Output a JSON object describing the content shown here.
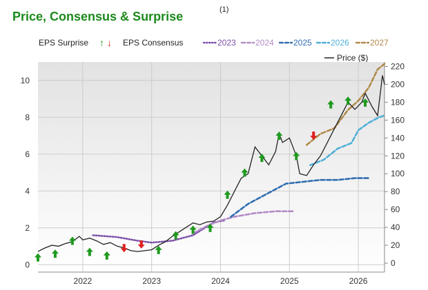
{
  "title": "Price, Consensus & Surprise",
  "title_superscript": "(1)",
  "legend": {
    "eps_surprise": "EPS Surprise",
    "eps_consensus": "EPS Consensus",
    "up_arrow": "↑",
    "down_arrow": "↓",
    "price": "Price ($)",
    "years": [
      "2023",
      "2024",
      "2025",
      "2026",
      "2027"
    ]
  },
  "colors": {
    "title": "#1d8a1d",
    "price": "#222222",
    "up": "#1f9a1f",
    "down": "#e02020",
    "plot_bg_top": "#e2e2e2",
    "plot_bg_bottom": "#ffffff",
    "grid": "#cccccc",
    "c2023": "#7b4fa8",
    "c2024": "#b38cc7",
    "c2025": "#2f6db0",
    "c2026": "#4fb0d8",
    "c2027": "#b08a4a"
  },
  "chart_data": {
    "type": "line",
    "x_axis": {
      "ticks": [
        "2022",
        "2023",
        "2024",
        "2025",
        "2026"
      ],
      "range": [
        2021.35,
        2026.38
      ]
    },
    "y_left": {
      "label": "",
      "ticks": [
        0,
        2,
        4,
        6,
        8,
        10
      ],
      "range": [
        -0.4,
        11
      ]
    },
    "y_right": {
      "label": "Price ($)",
      "ticks": [
        0,
        20,
        40,
        60,
        80,
        100,
        120,
        140,
        160,
        180,
        200,
        220
      ],
      "range": [
        -10,
        225
      ]
    },
    "price_series": {
      "name": "Price ($)",
      "points": [
        [
          2021.35,
          13
        ],
        [
          2021.45,
          17
        ],
        [
          2021.55,
          20
        ],
        [
          2021.65,
          19
        ],
        [
          2021.75,
          22
        ],
        [
          2021.85,
          24
        ],
        [
          2021.95,
          30
        ],
        [
          2022.0,
          26
        ],
        [
          2022.1,
          28
        ],
        [
          2022.2,
          25
        ],
        [
          2022.3,
          21
        ],
        [
          2022.4,
          23
        ],
        [
          2022.5,
          19
        ],
        [
          2022.6,
          17
        ],
        [
          2022.7,
          14
        ],
        [
          2022.8,
          13
        ],
        [
          2022.9,
          14
        ],
        [
          2023.0,
          15
        ],
        [
          2023.1,
          20
        ],
        [
          2023.2,
          24
        ],
        [
          2023.3,
          30
        ],
        [
          2023.4,
          35
        ],
        [
          2023.5,
          40
        ],
        [
          2023.6,
          45
        ],
        [
          2023.7,
          43
        ],
        [
          2023.8,
          46
        ],
        [
          2023.9,
          47
        ],
        [
          2024.0,
          52
        ],
        [
          2024.1,
          65
        ],
        [
          2024.2,
          80
        ],
        [
          2024.3,
          95
        ],
        [
          2024.4,
          100
        ],
        [
          2024.5,
          130
        ],
        [
          2024.6,
          120
        ],
        [
          2024.7,
          110
        ],
        [
          2024.8,
          125
        ],
        [
          2024.85,
          145
        ],
        [
          2024.9,
          135
        ],
        [
          2025.0,
          140
        ],
        [
          2025.1,
          120
        ],
        [
          2025.15,
          100
        ],
        [
          2025.25,
          98
        ],
        [
          2025.35,
          110
        ],
        [
          2025.45,
          120
        ],
        [
          2025.55,
          135
        ],
        [
          2025.65,
          150
        ],
        [
          2025.75,
          165
        ],
        [
          2025.85,
          180
        ],
        [
          2025.95,
          172
        ],
        [
          2026.05,
          180
        ],
        [
          2026.1,
          190
        ],
        [
          2026.2,
          175
        ],
        [
          2026.28,
          165
        ],
        [
          2026.35,
          210
        ],
        [
          2026.38,
          200
        ]
      ]
    },
    "consensus_series": [
      {
        "name": "2023",
        "style": "dotted",
        "points": [
          [
            2022.15,
            1.6
          ],
          [
            2022.5,
            1.5
          ],
          [
            2022.8,
            1.3
          ],
          [
            2023.0,
            1.2
          ],
          [
            2023.3,
            1.3
          ],
          [
            2023.6,
            1.6
          ],
          [
            2023.9,
            2.3
          ],
          [
            2024.05,
            2.4
          ]
        ]
      },
      {
        "name": "2024",
        "style": "dashed",
        "points": [
          [
            2023.6,
            1.7
          ],
          [
            2023.8,
            2.1
          ],
          [
            2024.0,
            2.4
          ],
          [
            2024.2,
            2.6
          ],
          [
            2024.5,
            2.8
          ],
          [
            2024.8,
            2.9
          ],
          [
            2025.05,
            2.9
          ]
        ]
      },
      {
        "name": "2025",
        "style": "dashed",
        "points": [
          [
            2024.15,
            2.6
          ],
          [
            2024.4,
            3.3
          ],
          [
            2024.7,
            3.9
          ],
          [
            2024.95,
            4.4
          ],
          [
            2025.2,
            4.5
          ],
          [
            2025.45,
            4.6
          ],
          [
            2025.7,
            4.6
          ],
          [
            2025.95,
            4.7
          ],
          [
            2026.15,
            4.7
          ]
        ]
      },
      {
        "name": "2026",
        "style": "dashed",
        "points": [
          [
            2025.3,
            5.4
          ],
          [
            2025.5,
            5.7
          ],
          [
            2025.7,
            6.3
          ],
          [
            2025.9,
            6.6
          ],
          [
            2026.0,
            7.3
          ],
          [
            2026.15,
            7.7
          ],
          [
            2026.3,
            8.0
          ],
          [
            2026.38,
            8.1
          ]
        ]
      },
      {
        "name": "2027",
        "style": "dashed",
        "points": [
          [
            2025.25,
            6.5
          ],
          [
            2025.45,
            7.1
          ],
          [
            2025.65,
            7.4
          ],
          [
            2025.85,
            8.4
          ],
          [
            2026.0,
            8.9
          ],
          [
            2026.15,
            9.6
          ],
          [
            2026.28,
            10.6
          ],
          [
            2026.38,
            10.9
          ]
        ]
      }
    ],
    "surprise_markers": [
      {
        "x": 2021.35,
        "dir": "up",
        "y": 0.4
      },
      {
        "x": 2021.6,
        "dir": "up",
        "y": 0.6
      },
      {
        "x": 2021.85,
        "dir": "up",
        "y": 1.3
      },
      {
        "x": 2022.1,
        "dir": "up",
        "y": 0.7
      },
      {
        "x": 2022.35,
        "dir": "up",
        "y": 0.5
      },
      {
        "x": 2022.6,
        "dir": "down",
        "y": 0.9
      },
      {
        "x": 2022.85,
        "dir": "down",
        "y": 1.1
      },
      {
        "x": 2023.1,
        "dir": "up",
        "y": 0.8
      },
      {
        "x": 2023.35,
        "dir": "up",
        "y": 1.6
      },
      {
        "x": 2023.6,
        "dir": "up",
        "y": 1.9
      },
      {
        "x": 2023.85,
        "dir": "up",
        "y": 2.0
      },
      {
        "x": 2024.1,
        "dir": "up",
        "y": 3.8
      },
      {
        "x": 2024.35,
        "dir": "up",
        "y": 5.0
      },
      {
        "x": 2024.6,
        "dir": "up",
        "y": 5.8
      },
      {
        "x": 2024.85,
        "dir": "up",
        "y": 7.0
      },
      {
        "x": 2025.1,
        "dir": "up",
        "y": 5.9
      },
      {
        "x": 2025.35,
        "dir": "down",
        "y": 7.0
      },
      {
        "x": 2025.6,
        "dir": "up",
        "y": 8.7
      },
      {
        "x": 2025.85,
        "dir": "up",
        "y": 8.9
      },
      {
        "x": 2026.1,
        "dir": "up",
        "y": 8.8
      }
    ]
  }
}
